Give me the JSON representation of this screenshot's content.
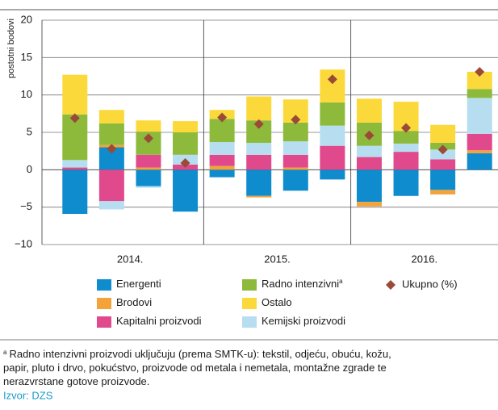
{
  "chart_data": {
    "type": "stacked_bar",
    "ylabel": "postotni bodovi",
    "categories": [
      null,
      null,
      null,
      null,
      null,
      null,
      null,
      null,
      null,
      null,
      null,
      null
    ],
    "group_labels": [
      "2014.",
      "2015.",
      "2016."
    ],
    "ylim": [
      -10,
      20
    ],
    "yticks": [
      {
        "value": -10,
        "label": "−10"
      },
      {
        "value": -5,
        "label": "−5"
      },
      0,
      5,
      10,
      15,
      20
    ],
    "grid": true,
    "series": [
      {
        "name": "Energenti",
        "color": "#0e8ccd",
        "values": [
          -5.9,
          3.0,
          -2.2,
          -5.6,
          -1.0,
          -3.5,
          -2.8,
          -1.3,
          -4.3,
          -3.5,
          -2.7,
          2.2
        ]
      },
      {
        "name": "Brodovi",
        "color": "#f4a33b",
        "values": [
          0,
          0.3,
          0.3,
          0,
          0.5,
          -0.2,
          0.3,
          0,
          -0.6,
          0,
          -0.6,
          0.4
        ]
      },
      {
        "name": "Kapitalni proizvodi",
        "color": "#e04a8c",
        "values": [
          0.3,
          -4.2,
          1.7,
          0.7,
          1.5,
          2.0,
          1.7,
          3.2,
          1.7,
          2.4,
          1.4,
          2.2
        ]
      },
      {
        "name": "Kemijski proizvodi",
        "color": "#b6def0",
        "values": [
          1.0,
          -1.1,
          -0.2,
          1.3,
          1.7,
          1.6,
          1.8,
          2.7,
          1.5,
          1.1,
          1.3,
          4.8
        ]
      },
      {
        "name": "Radno intenzivni",
        "footnote_mark": "a",
        "color": "#8dba3b",
        "values": [
          6.1,
          2.9,
          3.1,
          3.0,
          3.1,
          3.0,
          2.5,
          3.1,
          3.1,
          1.7,
          0.9,
          1.2
        ]
      },
      {
        "name": "Ostalo",
        "color": "#fcd93b",
        "values": [
          5.3,
          1.8,
          1.5,
          1.5,
          1.2,
          3.2,
          3.1,
          4.4,
          3.2,
          3.9,
          2.4,
          2.3
        ]
      }
    ],
    "total": {
      "name": "Ukupno (%)",
      "color": "#9b4a37",
      "values": [
        6.9,
        2.8,
        4.2,
        0.9,
        7.0,
        6.1,
        6.7,
        12.1,
        4.6,
        5.6,
        2.7,
        13.1
      ]
    },
    "footnote": {
      "mark": "a",
      "lines": [
        "Radno intenzivni proizvodi uključuju (prema SMTK-u): tekstil, odjeću, obuću, kožu,",
        "papir, pluto i drvo, pokućstvo, proizvode od metala i nemetala, montažne zgrade te",
        "nerazvrstane gotove proizvode."
      ]
    },
    "source": "Izvor: DZS"
  }
}
